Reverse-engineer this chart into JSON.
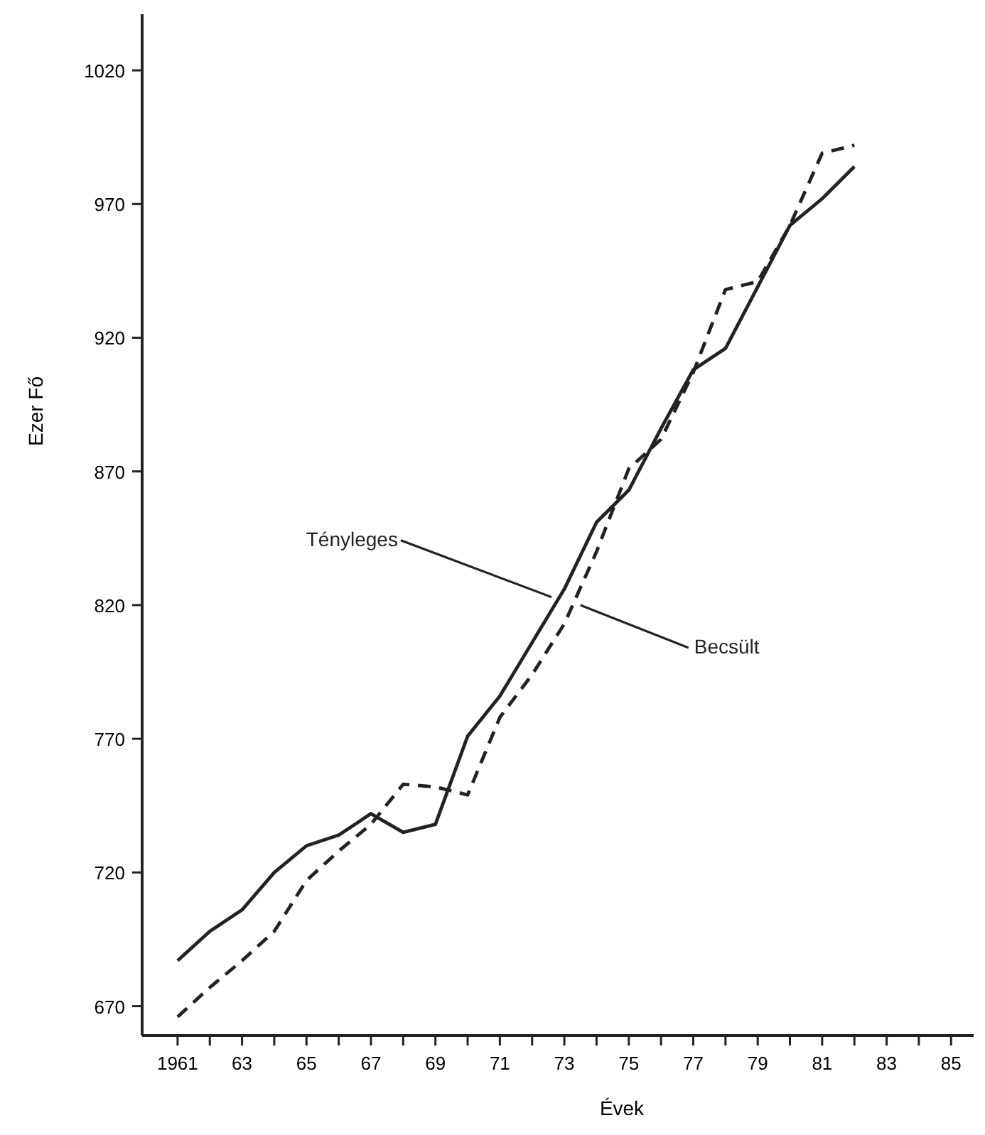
{
  "chart_data": {
    "type": "line",
    "xlabel": "Évek",
    "ylabel": "Ezer Fő",
    "x": [
      1961,
      1962,
      1963,
      1964,
      1965,
      1966,
      1967,
      1968,
      1969,
      1970,
      1971,
      1972,
      1973,
      1974,
      1975,
      1976,
      1977,
      1978,
      1979,
      1980,
      1981,
      1982
    ],
    "series": [
      {
        "color": "#222222",
        "line_style": "solid",
        "values": [
          687,
          698,
          706,
          720,
          730,
          734,
          742,
          735,
          738,
          771,
          786,
          806,
          826,
          851,
          863,
          886,
          908,
          916,
          939,
          962,
          972,
          984
        ]
      },
      {
        "color": "#222222",
        "line_style": "dashed",
        "values": [
          666,
          677,
          687,
          698,
          717,
          728,
          738,
          753,
          752,
          749,
          778,
          794,
          813,
          840,
          871,
          882,
          907,
          938,
          941,
          962,
          989,
          992
        ]
      }
    ],
    "xlim": [
      1959.9,
      1985.7
    ],
    "ylim": [
      659,
      1041
    ],
    "xticks": [
      1961,
      {
        "value": 1962,
        "label": null
      },
      {
        "value": 1963,
        "label": "63"
      },
      {
        "value": 1964,
        "label": null
      },
      {
        "value": 1965,
        "label": "65"
      },
      {
        "value": 1966,
        "label": null
      },
      {
        "value": 1967,
        "label": "67"
      },
      {
        "value": 1968,
        "label": null
      },
      {
        "value": 1969,
        "label": "69"
      },
      {
        "value": 1970,
        "label": null
      },
      {
        "value": 1971,
        "label": "71"
      },
      {
        "value": 1972,
        "label": null
      },
      {
        "value": 1973,
        "label": "73"
      },
      {
        "value": 1974,
        "label": null
      },
      {
        "value": 1975,
        "label": "75"
      },
      {
        "value": 1976,
        "label": null
      },
      {
        "value": 1977,
        "label": "77"
      },
      {
        "value": 1978,
        "label": null
      },
      {
        "value": 1979,
        "label": "79"
      },
      {
        "value": 1980,
        "label": null
      },
      {
        "value": 1981,
        "label": "81"
      },
      {
        "value": 1982,
        "label": null
      },
      {
        "value": 1983,
        "label": "83"
      },
      {
        "value": 1984,
        "label": null
      },
      {
        "value": 1985,
        "label": "85"
      }
    ],
    "yticks": [
      670,
      720,
      770,
      820,
      870,
      920,
      970,
      1020
    ],
    "annotations": [
      {
        "text": "Tényleges",
        "x": 1972.6,
        "y": 823
      },
      {
        "text": "Becsült",
        "x": 1973.5,
        "y": 820
      }
    ],
    "grid": false,
    "marker": "none"
  }
}
